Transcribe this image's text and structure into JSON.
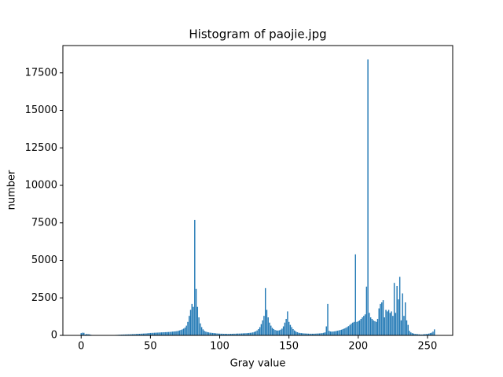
{
  "chart_data": {
    "type": "bar",
    "title": "Histogram of paojie.jpg",
    "xlabel": "Gray value",
    "ylabel": "number",
    "color": "#1f77b4",
    "x": [
      0,
      1,
      2,
      3,
      4,
      5,
      6,
      7,
      8,
      9,
      10,
      11,
      12,
      13,
      14,
      15,
      16,
      17,
      18,
      19,
      20,
      21,
      22,
      23,
      24,
      25,
      26,
      27,
      28,
      29,
      30,
      31,
      32,
      33,
      34,
      35,
      36,
      37,
      38,
      39,
      40,
      41,
      42,
      43,
      44,
      45,
      46,
      47,
      48,
      49,
      50,
      51,
      52,
      53,
      54,
      55,
      56,
      57,
      58,
      59,
      60,
      61,
      62,
      63,
      64,
      65,
      66,
      67,
      68,
      69,
      70,
      71,
      72,
      73,
      74,
      75,
      76,
      77,
      78,
      79,
      80,
      81,
      82,
      83,
      84,
      85,
      86,
      87,
      88,
      89,
      90,
      91,
      92,
      93,
      94,
      95,
      96,
      97,
      98,
      99,
      100,
      101,
      102,
      103,
      104,
      105,
      106,
      107,
      108,
      109,
      110,
      111,
      112,
      113,
      114,
      115,
      116,
      117,
      118,
      119,
      120,
      121,
      122,
      123,
      124,
      125,
      126,
      127,
      128,
      129,
      130,
      131,
      132,
      133,
      134,
      135,
      136,
      137,
      138,
      139,
      140,
      141,
      142,
      143,
      144,
      145,
      146,
      147,
      148,
      149,
      150,
      151,
      152,
      153,
      154,
      155,
      156,
      157,
      158,
      159,
      160,
      161,
      162,
      163,
      164,
      165,
      166,
      167,
      168,
      169,
      170,
      171,
      172,
      173,
      174,
      175,
      176,
      177,
      178,
      179,
      180,
      181,
      182,
      183,
      184,
      185,
      186,
      187,
      188,
      189,
      190,
      191,
      192,
      193,
      194,
      195,
      196,
      197,
      198,
      199,
      200,
      201,
      202,
      203,
      204,
      205,
      206,
      207,
      208,
      209,
      210,
      211,
      212,
      213,
      214,
      215,
      216,
      217,
      218,
      219,
      220,
      221,
      222,
      223,
      224,
      225,
      226,
      227,
      228,
      229,
      230,
      231,
      232,
      233,
      234,
      235,
      236,
      237,
      238,
      239,
      240,
      241,
      242,
      243,
      244,
      245,
      246,
      247,
      248,
      249,
      250,
      251,
      252,
      253,
      254,
      255
    ],
    "values": [
      150,
      180,
      170,
      60,
      90,
      80,
      70,
      40,
      10,
      5,
      5,
      3,
      2,
      2,
      3,
      4,
      5,
      6,
      8,
      10,
      12,
      15,
      18,
      20,
      25,
      30,
      35,
      40,
      45,
      50,
      55,
      60,
      60,
      65,
      70,
      70,
      75,
      80,
      85,
      90,
      95,
      100,
      105,
      110,
      115,
      120,
      125,
      130,
      140,
      150,
      160,
      165,
      170,
      175,
      180,
      185,
      190,
      195,
      200,
      205,
      210,
      215,
      220,
      225,
      230,
      240,
      250,
      260,
      270,
      280,
      300,
      330,
      360,
      400,
      450,
      520,
      650,
      900,
      1300,
      1700,
      2100,
      1900,
      7700,
      3100,
      1900,
      1200,
      800,
      550,
      400,
      300,
      250,
      220,
      200,
      180,
      170,
      160,
      150,
      140,
      130,
      120,
      115,
      110,
      110,
      105,
      105,
      100,
      100,
      100,
      105,
      105,
      110,
      110,
      115,
      120,
      120,
      125,
      130,
      135,
      140,
      145,
      150,
      160,
      170,
      180,
      200,
      230,
      270,
      330,
      420,
      550,
      750,
      1000,
      1300,
      3150,
      1700,
      1200,
      850,
      650,
      500,
      420,
      360,
      330,
      320,
      340,
      380,
      450,
      600,
      850,
      1100,
      1600,
      900,
      700,
      550,
      420,
      330,
      260,
      210,
      180,
      160,
      150,
      140,
      130,
      125,
      120,
      115,
      110,
      110,
      110,
      110,
      115,
      120,
      125,
      130,
      140,
      150,
      170,
      200,
      600,
      2100,
      300,
      260,
      250,
      260,
      270,
      290,
      310,
      330,
      360,
      380,
      420,
      460,
      500,
      560,
      620,
      700,
      780,
      850,
      900,
      5400,
      900,
      950,
      1000,
      1100,
      1200,
      1300,
      1400,
      3250,
      18400,
      1500,
      1200,
      1100,
      1000,
      950,
      900,
      1100,
      1800,
      2100,
      2200,
      2350,
      1200,
      1700,
      1600,
      1700,
      1500,
      1600,
      1300,
      3500,
      1500,
      3300,
      2400,
      3900,
      1000,
      2800,
      1300,
      2200,
      1000,
      700,
      300,
      200,
      150,
      120,
      100,
      90,
      80,
      70,
      60,
      60,
      70,
      80,
      90,
      100,
      120,
      150,
      180,
      250,
      400
    ],
    "xlim": [
      -13.19,
      268.19
    ],
    "xticks": [
      0,
      50,
      100,
      150,
      200,
      250
    ],
    "ylim": [
      0,
      19320
    ],
    "yticks": [
      0,
      2500,
      5000,
      7500,
      10000,
      12500,
      15000,
      17500
    ]
  }
}
